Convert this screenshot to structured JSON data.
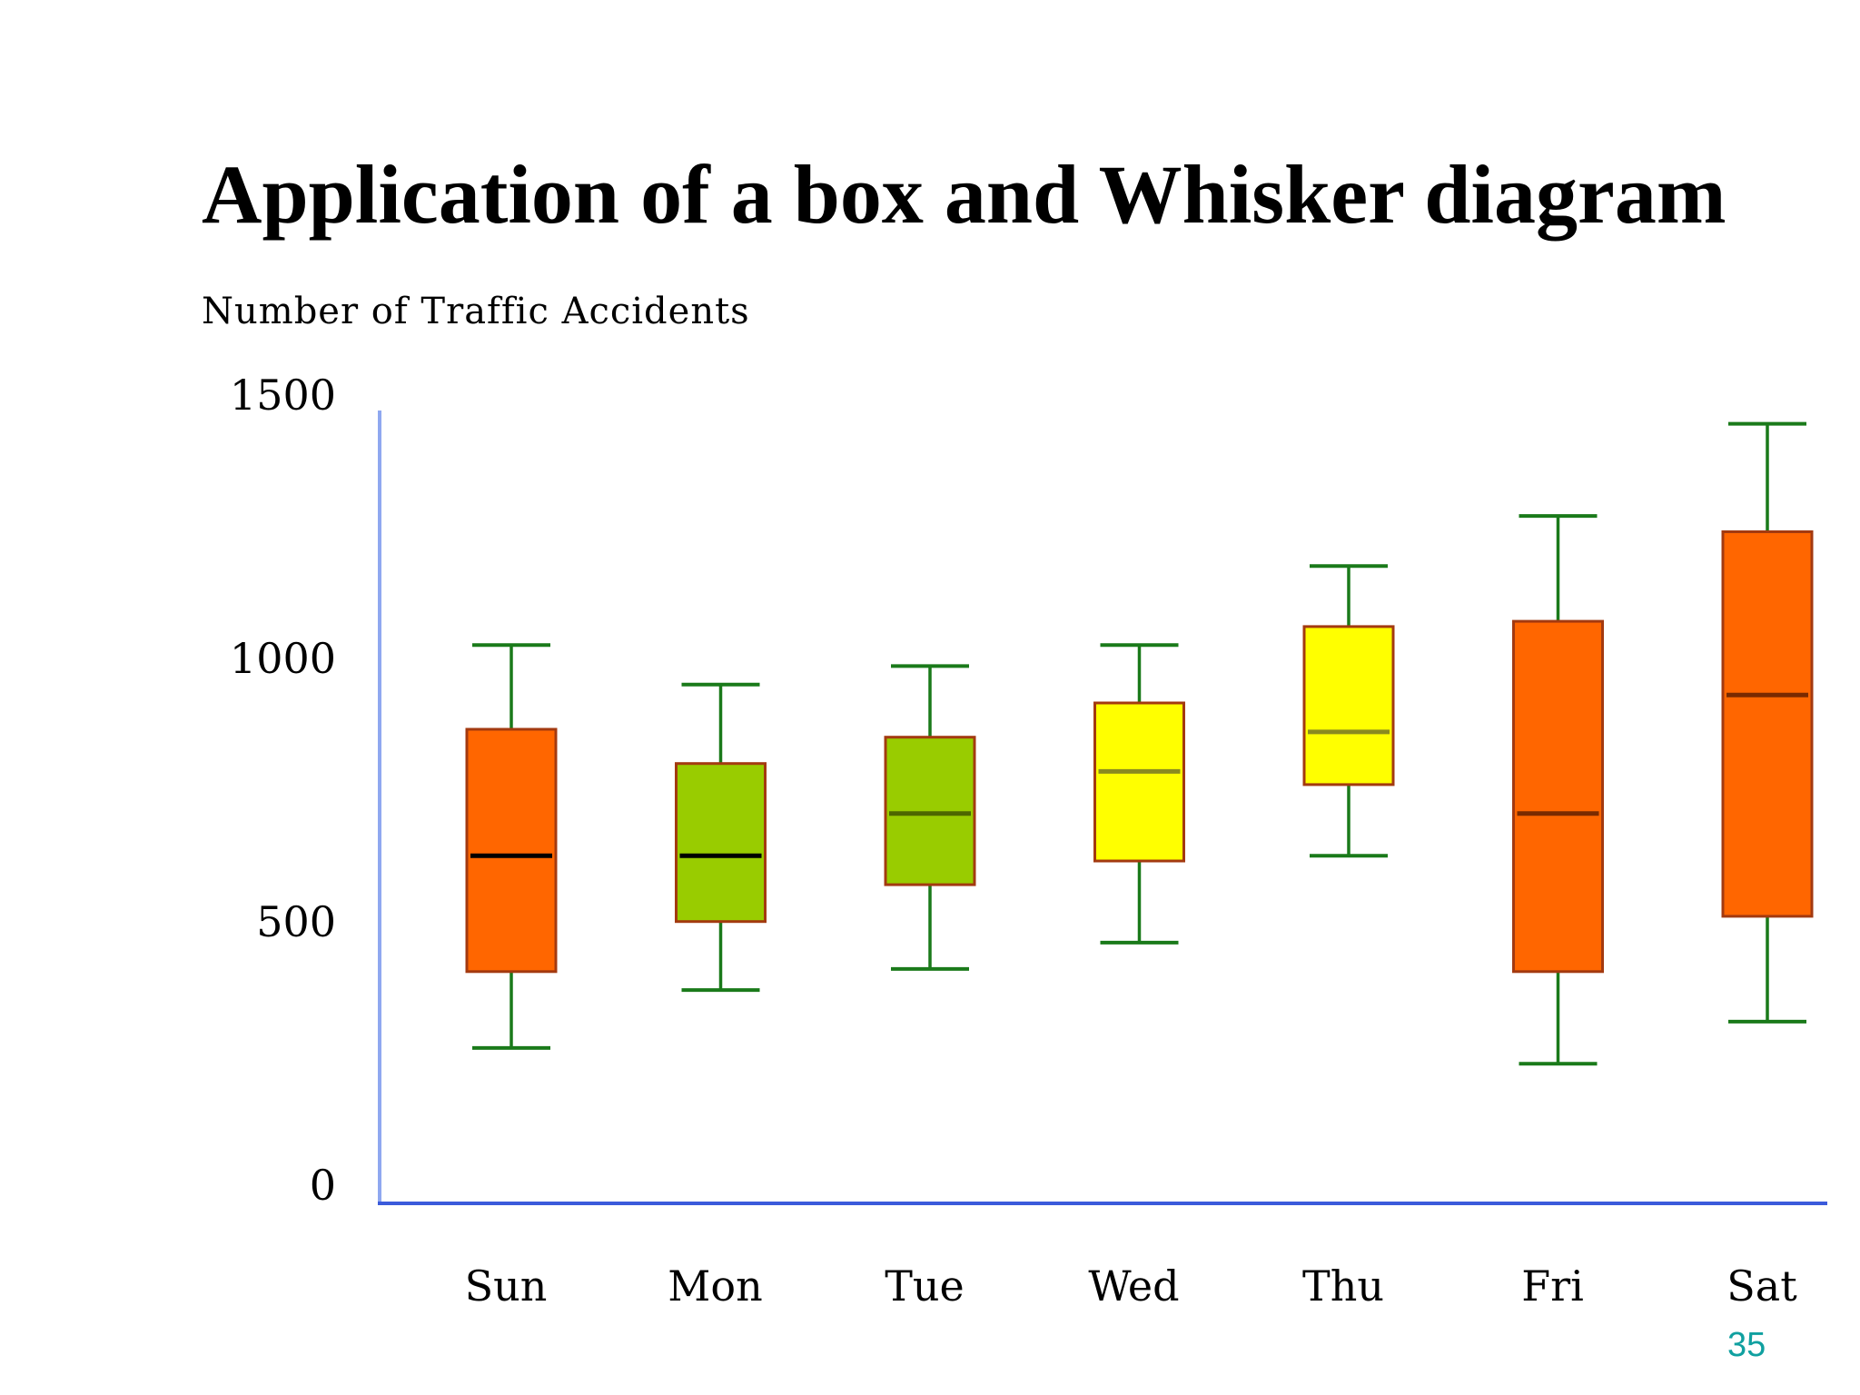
{
  "slide": {
    "title": "Application of a box and Whisker diagram",
    "page_number": "35"
  },
  "colors": {
    "axis": "#3b5bdb",
    "whisker": "#1a7a1a",
    "box_border": "#a33a10",
    "orange": "#ff6600",
    "green": "#99cc00",
    "yellow": "#ffff00"
  },
  "chart_data": {
    "type": "box",
    "title": "Number of Traffic Accidents",
    "xlabel": "",
    "ylabel": "",
    "ylim": [
      0,
      1500
    ],
    "yticks": [
      0,
      500,
      1000,
      1500
    ],
    "grid": false,
    "categories": [
      "Sun",
      "Mon",
      "Tue",
      "Wed",
      "Thu",
      "Fri",
      "Sat"
    ],
    "boxes": [
      {
        "min": 295,
        "q1": 440,
        "median": 660,
        "q3": 900,
        "max": 1060,
        "color": "#ff6600",
        "median_color": "#000000"
      },
      {
        "min": 405,
        "q1": 535,
        "median": 660,
        "q3": 835,
        "max": 985,
        "color": "#99cc00",
        "median_color": "#000000"
      },
      {
        "min": 445,
        "q1": 605,
        "median": 740,
        "q3": 885,
        "max": 1020,
        "color": "#99cc00",
        "median_color": "#4d6600"
      },
      {
        "min": 495,
        "q1": 650,
        "median": 820,
        "q3": 950,
        "max": 1060,
        "color": "#ffff00",
        "median_color": "#8a8a20"
      },
      {
        "min": 660,
        "q1": 795,
        "median": 895,
        "q3": 1095,
        "max": 1210,
        "color": "#ffff00",
        "median_color": "#8a8a20"
      },
      {
        "min": 265,
        "q1": 440,
        "median": 740,
        "q3": 1105,
        "max": 1305,
        "color": "#ff6600",
        "median_color": "#7a2a00"
      },
      {
        "min": 345,
        "q1": 545,
        "median": 965,
        "q3": 1275,
        "max": 1480,
        "color": "#ff6600",
        "median_color": "#7a2a00"
      }
    ]
  }
}
